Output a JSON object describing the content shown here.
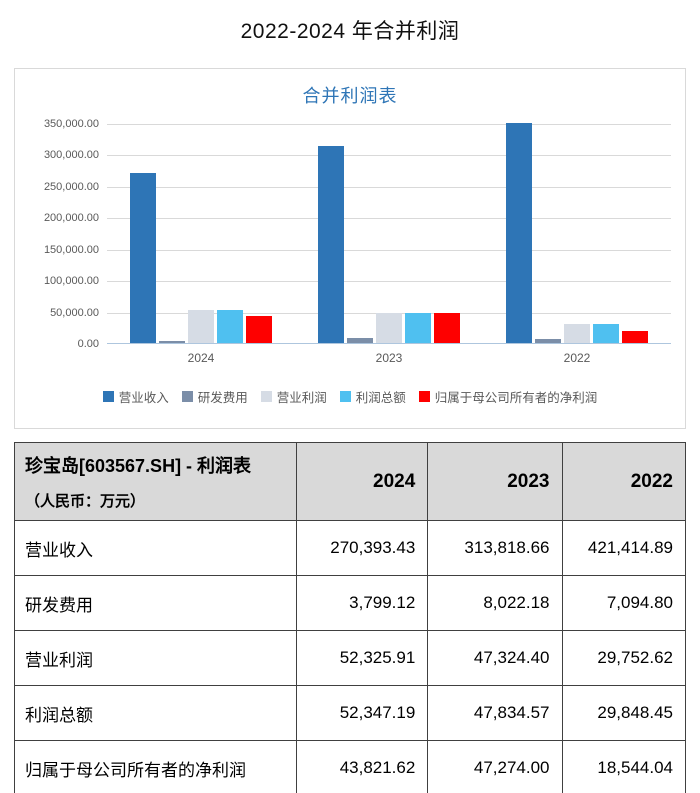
{
  "page_title": "2022-2024 年合并利润",
  "chart_data": {
    "type": "bar",
    "title": "合并利润表",
    "categories": [
      "2024",
      "2023",
      "2022"
    ],
    "series": [
      {
        "name": "营业收入",
        "color": "#2e75b6",
        "values": [
          270393.43,
          313818.66,
          421414.89
        ]
      },
      {
        "name": "研发费用",
        "color": "#7b8ea8",
        "values": [
          3799.12,
          8022.18,
          7094.8
        ]
      },
      {
        "name": "营业利润",
        "color": "#d6dce5",
        "values": [
          52325.91,
          47324.4,
          29752.62
        ]
      },
      {
        "name": "利润总额",
        "color": "#4fc0f0",
        "values": [
          52347.19,
          47834.57,
          29848.45
        ]
      },
      {
        "name": "归属于母公司所有者的净利润",
        "color": "#fe0000",
        "values": [
          43821.62,
          47274.0,
          18544.04
        ]
      }
    ],
    "xlabel": "",
    "ylabel": "",
    "ylim": [
      0,
      350000
    ],
    "y_tick_labels": [
      "350,000.00",
      "300,000.00",
      "250,000.00",
      "200,000.00",
      "150,000.00",
      "100,000.00",
      "50,000.00",
      "0.00"
    ],
    "grid": true,
    "legend_position": "bottom",
    "note": "2022 营业收入 bar exceeds axis max and is clipped at plot top"
  },
  "colors": {
    "chart_title": "#2e75b6",
    "axis_text": "#595959",
    "gridline": "#d9d9d9",
    "axis_line": "#aec6de",
    "table_header_bg": "#d9d9d9",
    "table_border": "#404040"
  },
  "table": {
    "header": {
      "title_line1": "珍宝岛[603567.SH] -  利润表",
      "title_line2": "（人民币：万元）",
      "years": [
        "2024",
        "2023",
        "2022"
      ]
    },
    "rows": [
      {
        "label": "营业收入",
        "values": [
          "270,393.43",
          "313,818.66",
          "421,414.89"
        ]
      },
      {
        "label": "研发费用",
        "values": [
          "3,799.12",
          "8,022.18",
          "7,094.80"
        ]
      },
      {
        "label": "营业利润",
        "values": [
          "52,325.91",
          "47,324.40",
          "29,752.62"
        ]
      },
      {
        "label": "利润总额",
        "values": [
          "52,347.19",
          "47,834.57",
          "29,848.45"
        ]
      },
      {
        "label": "归属于母公司所有者的净利润",
        "values": [
          "43,821.62",
          "47,274.00",
          "18,544.04"
        ]
      }
    ]
  }
}
